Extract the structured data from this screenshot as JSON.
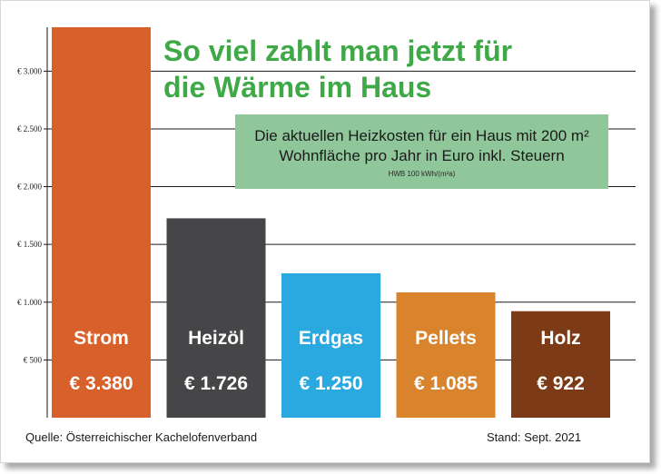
{
  "title_line1": "So viel zahlt man jetzt für",
  "title_line2": "die Wärme im Haus",
  "info": {
    "line1": "Die aktuellen Heizkosten für ein Haus mit 200 m²",
    "line2": "Wohnfläche pro Jahr in Euro inkl. Steuern",
    "small": "HWB 100 kWh/(m²a)"
  },
  "footer": {
    "source": "Quelle: Österreichischer Kachelofenverband",
    "stand": "Stand: Sept. 2021"
  },
  "chart_data": {
    "type": "bar",
    "categories": [
      "Strom",
      "Heizöl",
      "Erdgas",
      "Pellets",
      "Holz"
    ],
    "values": [
      3380,
      1726,
      1250,
      1085,
      922
    ],
    "value_labels": [
      "€ 3.380",
      "€ 1.726",
      "€ 1.250",
      "€ 1.085",
      "€ 922"
    ],
    "colors": [
      "#d8602a",
      "#464648",
      "#2aa8e0",
      "#d9842c",
      "#7c3a16"
    ],
    "yticks": [
      500,
      1000,
      1500,
      2000,
      2500,
      3000
    ],
    "ytick_labels": [
      "€ 500",
      "€ 1.000",
      "€ 1.500",
      "€ 2.000",
      "€ 2.500",
      "€ 3.000"
    ],
    "ylim": [
      0,
      3380
    ],
    "grid": true
  }
}
